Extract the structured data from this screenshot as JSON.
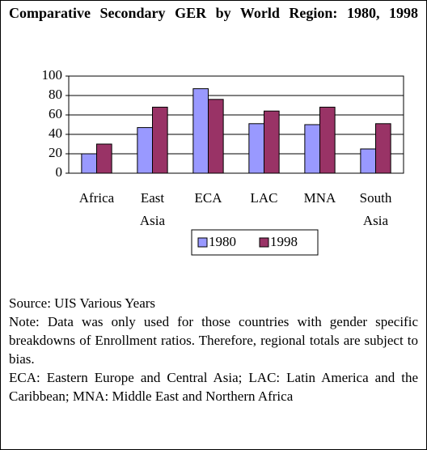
{
  "chart_data": {
    "type": "bar",
    "title": "Comparative Secondary GER by World Region: 1980, 1998",
    "categories": [
      "Africa",
      "East Asia",
      "ECA",
      "LAC",
      "MNA",
      "South Asia"
    ],
    "series": [
      {
        "name": "1980",
        "color": "#9999ff",
        "values": [
          20,
          47,
          87,
          51,
          50,
          25
        ]
      },
      {
        "name": "1998",
        "color": "#993366",
        "values": [
          30,
          68,
          76,
          64,
          68,
          51
        ]
      }
    ],
    "ylim": [
      0,
      100
    ],
    "yticks": [
      0,
      20,
      40,
      60,
      80,
      100
    ],
    "grid": true,
    "legend": "bottom",
    "source": "Source: UIS Various Years",
    "notes": [
      "Note: Data was only used for those countries with gender specific breakdowns of Enrollment ratios. Therefore, regional totals are subject to bias.",
      "ECA: Eastern Europe and Central Asia; LAC: Latin America and the Caribbean; MNA: Middle East and Northern Africa"
    ]
  }
}
